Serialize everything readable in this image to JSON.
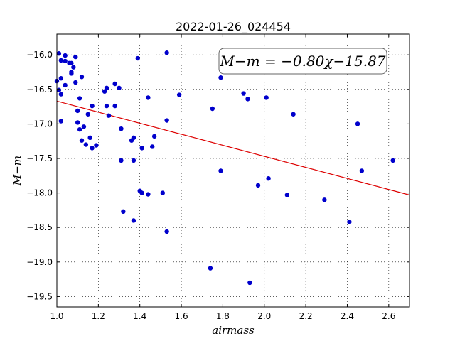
{
  "chart_data": {
    "type": "scatter",
    "title": "2022-01-26_024454",
    "xlabel": "airmass",
    "ylabel": "M−m",
    "xlim": [
      1.0,
      2.7
    ],
    "ylim": [
      -19.65,
      -15.7
    ],
    "y_inverted": true,
    "grid": true,
    "x_ticks": [
      "1.0",
      "1.2",
      "1.4",
      "1.6",
      "1.8",
      "2.0",
      "2.2",
      "2.4",
      "2.6"
    ],
    "y_ticks": [
      "−16.0",
      "−16.5",
      "−17.0",
      "−17.5",
      "−18.0",
      "−18.5",
      "−19.0",
      "−19.5"
    ],
    "annotation": "M−m = −0.80χ−15.87",
    "colors": {
      "points": "#0000cc",
      "fit_line": "#dd0000"
    },
    "fit": {
      "slope": -0.8,
      "intercept": -15.87
    },
    "series": [
      {
        "values": [
          [
            1.01,
            -15.98
          ],
          [
            1.04,
            -16.01
          ],
          [
            1.09,
            -16.03
          ],
          [
            1.02,
            -16.08
          ],
          [
            1.04,
            -16.09
          ],
          [
            1.06,
            -16.12
          ],
          [
            1.07,
            -16.12
          ],
          [
            1.08,
            -16.18
          ],
          [
            1.07,
            -16.25
          ],
          [
            1.07,
            -16.27
          ],
          [
            1.0,
            -16.38
          ],
          [
            1.02,
            -16.34
          ],
          [
            1.12,
            -16.32
          ],
          [
            1.09,
            -16.4
          ],
          [
            1.04,
            -16.44
          ],
          [
            1.01,
            -16.51
          ],
          [
            1.02,
            -16.57
          ],
          [
            1.24,
            -16.48
          ],
          [
            1.23,
            -16.53
          ],
          [
            1.28,
            -16.42
          ],
          [
            1.3,
            -16.48
          ],
          [
            1.11,
            -16.63
          ],
          [
            1.24,
            -16.74
          ],
          [
            1.17,
            -16.74
          ],
          [
            1.28,
            -16.74
          ],
          [
            1.15,
            -16.86
          ],
          [
            1.25,
            -16.88
          ],
          [
            1.02,
            -16.96
          ],
          [
            1.1,
            -16.98
          ],
          [
            1.1,
            -16.81
          ],
          [
            1.13,
            -17.04
          ],
          [
            1.11,
            -17.08
          ],
          [
            1.31,
            -17.07
          ],
          [
            1.16,
            -17.2
          ],
          [
            1.12,
            -17.24
          ],
          [
            1.14,
            -17.3
          ],
          [
            1.19,
            -17.31
          ],
          [
            1.17,
            -17.35
          ],
          [
            1.37,
            -17.2
          ],
          [
            1.36,
            -17.24
          ],
          [
            1.41,
            -17.35
          ],
          [
            1.46,
            -17.33
          ],
          [
            1.47,
            -17.18
          ],
          [
            1.31,
            -17.53
          ],
          [
            1.37,
            -17.53
          ],
          [
            1.44,
            -16.62
          ],
          [
            1.39,
            -16.05
          ],
          [
            1.53,
            -15.97
          ],
          [
            1.53,
            -16.95
          ],
          [
            1.59,
            -16.58
          ],
          [
            1.4,
            -17.97
          ],
          [
            1.41,
            -18.0
          ],
          [
            1.44,
            -18.02
          ],
          [
            1.51,
            -18.0
          ],
          [
            1.32,
            -18.27
          ],
          [
            1.37,
            -18.4
          ],
          [
            1.53,
            -18.56
          ],
          [
            1.75,
            -16.78
          ],
          [
            1.79,
            -16.33
          ],
          [
            1.79,
            -17.68
          ],
          [
            1.74,
            -19.09
          ],
          [
            1.9,
            -16.56
          ],
          [
            1.92,
            -16.64
          ],
          [
            2.01,
            -16.62
          ],
          [
            1.97,
            -17.89
          ],
          [
            2.02,
            -17.79
          ],
          [
            1.93,
            -19.3
          ],
          [
            2.14,
            -16.86
          ],
          [
            2.11,
            -18.03
          ],
          [
            2.29,
            -18.1
          ],
          [
            2.45,
            -17.0
          ],
          [
            2.47,
            -17.68
          ],
          [
            2.41,
            -18.42
          ],
          [
            2.62,
            -17.53
          ]
        ]
      }
    ]
  }
}
